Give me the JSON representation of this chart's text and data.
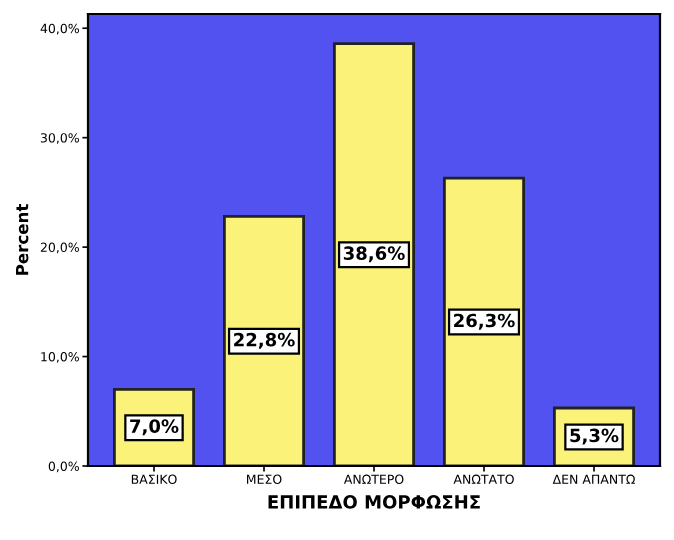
{
  "chart_data": {
    "type": "bar",
    "xlabel": "ΕΠΙΠΕΔΟ ΜΟΡΦΩΣΗΣ",
    "ylabel": "Percent",
    "categories": [
      "ΒΑΣΙΚΟ",
      "ΜΕΣΟ",
      "ΑΝΩΤΕΡΟ",
      "ΑΝΩΤΑΤΟ",
      "ΔΕΝ ΑΠΑΝΤΩ"
    ],
    "values": [
      7.0,
      22.8,
      38.6,
      26.3,
      5.3
    ],
    "value_labels": [
      "7,0%",
      "22,8%",
      "38,6%",
      "26,3%",
      "5,3%"
    ],
    "color": "#fbf27a",
    "ylim": [
      0,
      41.3
    ],
    "yticks": [
      {
        "value": 0,
        "label": "0,0%"
      },
      {
        "value": 10,
        "label": "10,0%"
      },
      {
        "value": 20,
        "label": "20,0%"
      },
      {
        "value": 30,
        "label": "30,0%"
      },
      {
        "value": 40,
        "label": "40,0%"
      }
    ],
    "grid": false,
    "legend": false
  }
}
